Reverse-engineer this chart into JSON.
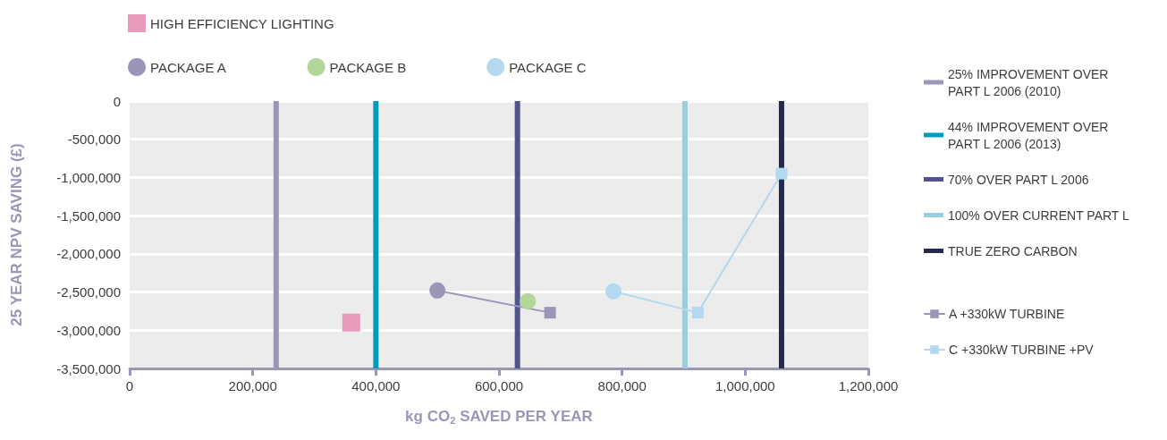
{
  "chart_data": {
    "type": "scatter",
    "xlabel": "kg CO$_{2}$ SAVED PER YEAR",
    "ylabel": "25 YEAR NPV SAVING (£)",
    "xlim": [
      0,
      1200000
    ],
    "xticks": [
      0,
      {
        "value": 200000,
        "label": "200,000"
      },
      {
        "value": 400000,
        "label": "400,000"
      },
      {
        "value": 600000,
        "label": "600,000"
      },
      {
        "value": 800000,
        "label": "800,000"
      },
      {
        "value": 1000000,
        "label": "1,000,000"
      },
      {
        "value": 1200000,
        "label": "1,200,000"
      }
    ],
    "ylim": [
      -3500000,
      0
    ],
    "yticks": [
      {
        "value": -3500000,
        "label": "-3,500,000"
      },
      {
        "value": -3000000,
        "label": "-3,000,000"
      },
      {
        "value": -2500000,
        "label": "-2,500,000"
      },
      {
        "value": -2000000,
        "label": "-2,000,000"
      },
      {
        "value": -1500000,
        "label": "-1,500,000"
      },
      {
        "value": -1000000,
        "label": "-1,000,000"
      },
      {
        "value": -500000,
        "label": "-500,000"
      },
      0
    ],
    "grid": "y",
    "legend": "top",
    "series": [
      {
        "name": "HIGH EFFICIENCY LIGHTING",
        "color": "#e99bbd",
        "marker": "square",
        "x": [
          360000
        ],
        "values": [
          -2900000
        ]
      },
      {
        "name": "PACKAGE A",
        "color": "#9b96b8",
        "marker": "circle",
        "x": [
          500000
        ],
        "values": [
          -2480000
        ]
      },
      {
        "name": "PACKAGE B",
        "color": "#b3d69a",
        "marker": "circle",
        "x": [
          647000
        ],
        "values": [
          -2620000
        ]
      },
      {
        "name": "PACKAGE C",
        "color": "#b3d8ef",
        "marker": "circle",
        "x": [
          786000
        ],
        "values": [
          -2490000
        ]
      },
      {
        "name": "25% IMPROVEMENT OVER PART L 2006 (2010)",
        "type": "line",
        "marker": "none",
        "color": "#9b96b8",
        "x": [
          238000,
          238000
        ],
        "values": [
          -3500000,
          0
        ]
      },
      {
        "name": "44% IMPROVEMENT OVER PART L 2006 (2013)",
        "type": "line",
        "marker": "none",
        "color": "#009bbf",
        "x": [
          400000,
          400000
        ],
        "values": [
          -3500000,
          0
        ]
      },
      {
        "name": "70% OVER PART L 2006",
        "type": "line",
        "marker": "none",
        "color": "#50548a",
        "x": [
          630000,
          630000
        ],
        "values": [
          -3500000,
          0
        ]
      },
      {
        "name": "100% OVER CURRENT PART L",
        "type": "line",
        "marker": "none",
        "color": "#99cde0",
        "x": [
          902000,
          902000
        ],
        "values": [
          -3500000,
          0
        ]
      },
      {
        "name": "TRUE ZERO CARBON",
        "type": "line",
        "marker": "none",
        "color": "#232a4e",
        "x": [
          1059000,
          1059000
        ],
        "values": [
          -3500000,
          0
        ]
      },
      {
        "name": "A +330kW TURBINE",
        "type": "line",
        "color": "#9b96b8",
        "marker": "square",
        "x": [
          500000,
          683000
        ],
        "values": [
          -2480000,
          -2770000
        ]
      },
      {
        "name": "C +330kW TURBINE +PV",
        "type": "line",
        "color": "#b3d8ef",
        "marker": "square",
        "x": [
          786000,
          923000,
          1059000
        ],
        "values": [
          -2490000,
          -2770000,
          -950000
        ]
      }
    ]
  }
}
